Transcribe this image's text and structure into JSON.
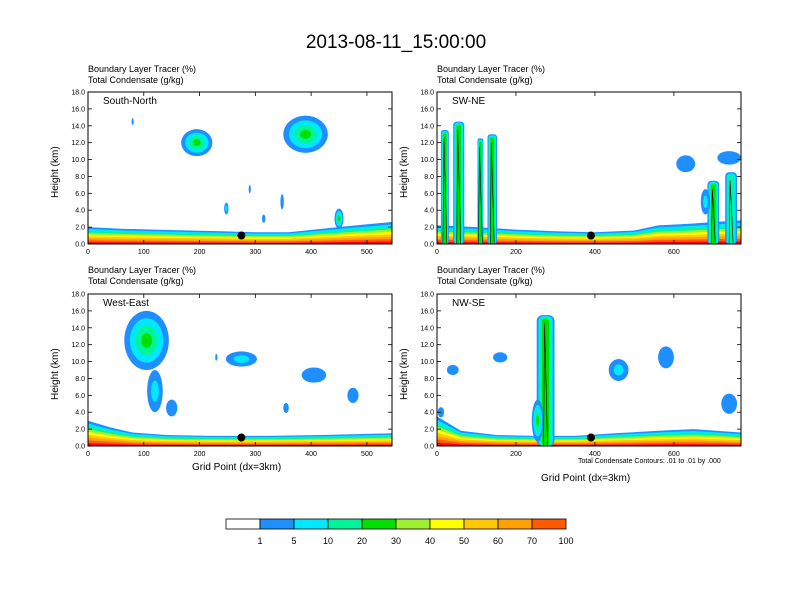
{
  "title": "2013-08-11_15:00:00",
  "palette": [
    "#ffffff",
    "#1f8fff",
    "#00e8ff",
    "#00f59a",
    "#00e000",
    "#a0f032",
    "#ffff00",
    "#ffc800",
    "#ffa000",
    "#ff5a00",
    "#ff0000"
  ],
  "panel_common": {
    "line1": "Boundary Layer Tracer   (%)",
    "line2": "Total Condensate   (g/kg)",
    "ylabel": "Height (km)",
    "xlabel": "Grid Point (dx=3km)"
  },
  "contour_note": "Total Condensate Contours: .01 to .01 by .000",
  "chart_data": [
    {
      "type": "heatmap",
      "id": "south-north",
      "inset": "South-North",
      "xlim": [
        0,
        545
      ],
      "ylim": [
        0,
        18
      ],
      "xticks": [
        0,
        100,
        200,
        300,
        400,
        500
      ],
      "yticks": [
        0.0,
        2.0,
        4.0,
        6.0,
        8.0,
        10.0,
        12.0,
        14.0,
        16.0,
        18.0
      ],
      "marker": {
        "x": 275,
        "y": 1.0
      },
      "features": [
        {
          "kind": "pbl",
          "points": [
            [
              0,
              2.0
            ],
            [
              60,
              1.8
            ],
            [
              120,
              1.7
            ],
            [
              180,
              1.6
            ],
            [
              240,
              1.5
            ],
            [
              300,
              1.4
            ],
            [
              360,
              1.4
            ],
            [
              420,
              1.8
            ],
            [
              480,
              2.2
            ],
            [
              545,
              2.6
            ]
          ]
        },
        {
          "kind": "cloud",
          "x": 195,
          "y": 12.0,
          "rx": 28,
          "ry": 1.6,
          "level": 4
        },
        {
          "kind": "cloud",
          "x": 390,
          "y": 13.0,
          "rx": 40,
          "ry": 2.2,
          "level": 4
        },
        {
          "kind": "cloud",
          "x": 450,
          "y": 3.0,
          "rx": 8,
          "ry": 1.2,
          "level": 4
        },
        {
          "kind": "cloud",
          "x": 248,
          "y": 4.2,
          "rx": 4,
          "ry": 0.7,
          "level": 2
        },
        {
          "kind": "cloud",
          "x": 348,
          "y": 5.0,
          "rx": 3,
          "ry": 0.9,
          "level": 1
        },
        {
          "kind": "cloud",
          "x": 290,
          "y": 6.5,
          "rx": 2,
          "ry": 0.5,
          "level": 1
        },
        {
          "kind": "cloud",
          "x": 315,
          "y": 3.0,
          "rx": 3,
          "ry": 0.5,
          "level": 1
        },
        {
          "kind": "cloud",
          "x": 80,
          "y": 14.5,
          "rx": 2,
          "ry": 0.4,
          "level": 1
        }
      ]
    },
    {
      "type": "heatmap",
      "id": "sw-ne",
      "inset": "SW-NE",
      "xlim": [
        0,
        770
      ],
      "ylim": [
        0,
        18
      ],
      "xticks": [
        0,
        200,
        400,
        600
      ],
      "yticks": [
        0.0,
        2.0,
        4.0,
        6.0,
        8.0,
        10.0,
        12.0,
        14.0,
        16.0,
        18.0
      ],
      "marker": {
        "x": 390,
        "y": 1.0
      },
      "features": [
        {
          "kind": "pbl",
          "points": [
            [
              0,
              2.2
            ],
            [
              100,
              2.0
            ],
            [
              200,
              1.7
            ],
            [
              300,
              1.5
            ],
            [
              400,
              1.4
            ],
            [
              500,
              1.6
            ],
            [
              560,
              2.2
            ],
            [
              640,
              2.4
            ],
            [
              700,
              2.6
            ],
            [
              770,
              2.8
            ]
          ]
        },
        {
          "kind": "column",
          "x": 20,
          "width": 20,
          "top": 13.5,
          "level": 4
        },
        {
          "kind": "column",
          "x": 55,
          "width": 28,
          "top": 14.5,
          "level": 4
        },
        {
          "kind": "column",
          "x": 110,
          "width": 15,
          "top": 12.5,
          "level": 4
        },
        {
          "kind": "column",
          "x": 140,
          "width": 24,
          "top": 13.0,
          "level": 4
        },
        {
          "kind": "column",
          "x": 700,
          "width": 30,
          "top": 7.5,
          "level": 4
        },
        {
          "kind": "column",
          "x": 745,
          "width": 30,
          "top": 8.5,
          "level": 3
        },
        {
          "kind": "cloud",
          "x": 630,
          "y": 9.5,
          "rx": 24,
          "ry": 1.0,
          "level": 1
        },
        {
          "kind": "cloud",
          "x": 740,
          "y": 10.2,
          "rx": 30,
          "ry": 0.8,
          "level": 1
        },
        {
          "kind": "cloud",
          "x": 680,
          "y": 5.0,
          "rx": 12,
          "ry": 1.5,
          "level": 2
        }
      ]
    },
    {
      "type": "heatmap",
      "id": "west-east",
      "inset": "West-East",
      "xlim": [
        0,
        545
      ],
      "ylim": [
        0,
        18
      ],
      "xticks": [
        0,
        100,
        200,
        300,
        400,
        500
      ],
      "yticks": [
        0.0,
        2.0,
        4.0,
        6.0,
        8.0,
        10.0,
        12.0,
        14.0,
        16.0,
        18.0
      ],
      "marker": {
        "x": 275,
        "y": 1.0
      },
      "features": [
        {
          "kind": "pbl",
          "points": [
            [
              0,
              3.0
            ],
            [
              40,
              2.2
            ],
            [
              80,
              1.6
            ],
            [
              140,
              1.3
            ],
            [
              220,
              1.2
            ],
            [
              320,
              1.2
            ],
            [
              420,
              1.3
            ],
            [
              545,
              1.5
            ]
          ]
        },
        {
          "kind": "cloud",
          "x": 105,
          "y": 12.5,
          "rx": 40,
          "ry": 3.5,
          "level": 4
        },
        {
          "kind": "cloud",
          "x": 120,
          "y": 6.5,
          "rx": 14,
          "ry": 2.5,
          "level": 2
        },
        {
          "kind": "cloud",
          "x": 150,
          "y": 4.5,
          "rx": 10,
          "ry": 1.0,
          "level": 1
        },
        {
          "kind": "cloud",
          "x": 275,
          "y": 10.3,
          "rx": 28,
          "ry": 0.9,
          "level": 2
        },
        {
          "kind": "cloud",
          "x": 405,
          "y": 8.4,
          "rx": 22,
          "ry": 0.9,
          "level": 1
        },
        {
          "kind": "cloud",
          "x": 475,
          "y": 6.0,
          "rx": 10,
          "ry": 0.9,
          "level": 1
        },
        {
          "kind": "cloud",
          "x": 355,
          "y": 4.5,
          "rx": 5,
          "ry": 0.6,
          "level": 1
        },
        {
          "kind": "cloud",
          "x": 230,
          "y": 10.5,
          "rx": 2,
          "ry": 0.4,
          "level": 1
        }
      ]
    },
    {
      "type": "heatmap",
      "id": "nw-se",
      "inset": "NW-SE",
      "xlim": [
        0,
        770
      ],
      "ylim": [
        0,
        18
      ],
      "xticks": [
        0,
        200,
        400,
        600
      ],
      "yticks": [
        0.0,
        2.0,
        4.0,
        6.0,
        8.0,
        10.0,
        12.0,
        14.0,
        16.0,
        18.0
      ],
      "marker": {
        "x": 390,
        "y": 1.0
      },
      "features": [
        {
          "kind": "pbl",
          "points": [
            [
              0,
              3.5
            ],
            [
              60,
              1.8
            ],
            [
              150,
              1.3
            ],
            [
              250,
              1.2
            ],
            [
              350,
              1.2
            ],
            [
              450,
              1.5
            ],
            [
              560,
              1.8
            ],
            [
              650,
              2.0
            ],
            [
              770,
              1.6
            ]
          ]
        },
        {
          "kind": "column",
          "x": 275,
          "width": 45,
          "top": 15.5,
          "level": 4
        },
        {
          "kind": "cloud",
          "x": 255,
          "y": 3.0,
          "rx": 15,
          "ry": 2.5,
          "level": 4
        },
        {
          "kind": "cloud",
          "x": 460,
          "y": 9.0,
          "rx": 25,
          "ry": 1.3,
          "level": 2
        },
        {
          "kind": "cloud",
          "x": 580,
          "y": 10.5,
          "rx": 20,
          "ry": 1.3,
          "level": 1
        },
        {
          "kind": "cloud",
          "x": 40,
          "y": 9.0,
          "rx": 15,
          "ry": 0.6,
          "level": 1
        },
        {
          "kind": "cloud",
          "x": 160,
          "y": 10.5,
          "rx": 18,
          "ry": 0.6,
          "level": 1
        },
        {
          "kind": "cloud",
          "x": 740,
          "y": 5.0,
          "rx": 20,
          "ry": 1.2,
          "level": 1
        },
        {
          "kind": "cloud",
          "x": 10,
          "y": 4.0,
          "rx": 8,
          "ry": 0.6,
          "level": 1
        }
      ]
    }
  ],
  "colorbar": {
    "labels": [
      "1",
      "5",
      "10",
      "20",
      "30",
      "40",
      "50",
      "60",
      "70",
      "100"
    ]
  }
}
